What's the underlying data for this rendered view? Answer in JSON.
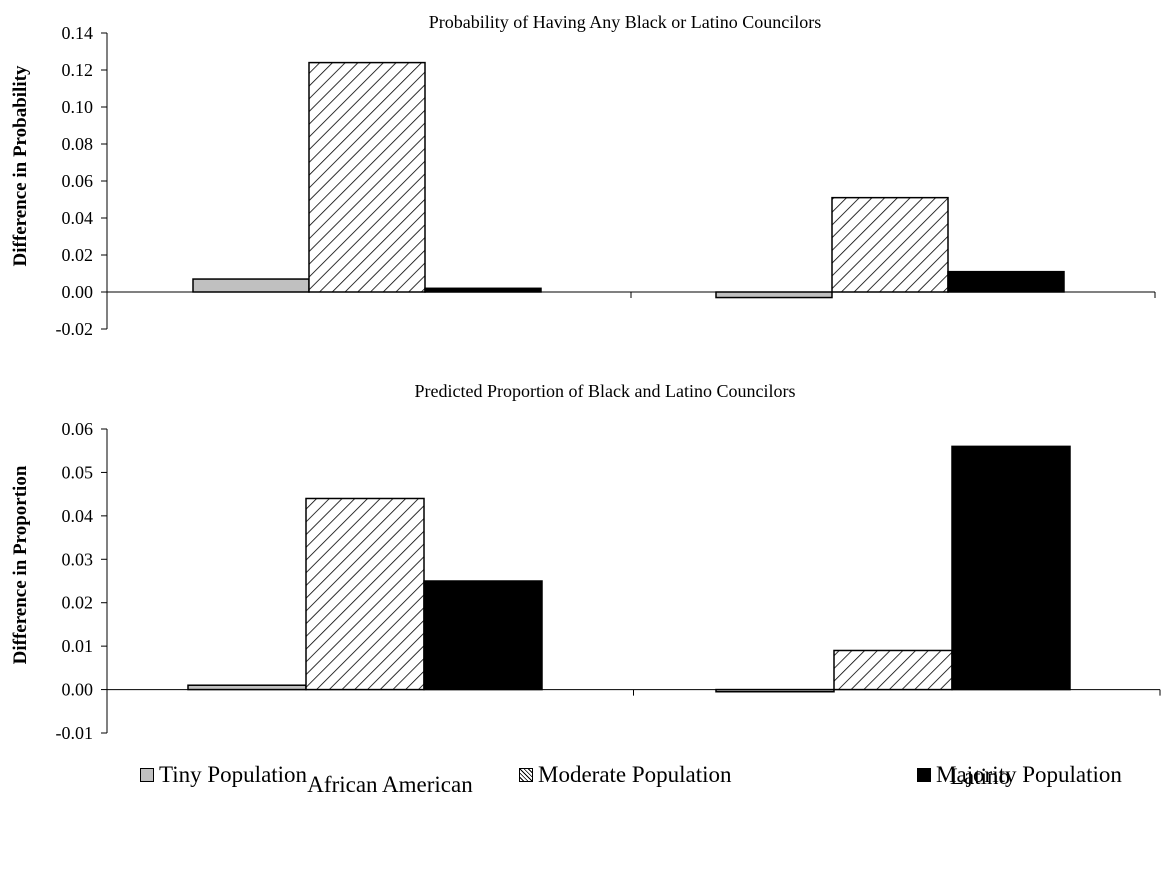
{
  "chart_data": [
    {
      "type": "bar",
      "title": "Probability of Having Any Black or Latino Councilors",
      "ylabel": "Difference in Probability",
      "categories": [
        "African American",
        "Latino"
      ],
      "ylim": [
        -0.02,
        0.14
      ],
      "yticks": [
        "-0.02",
        "0.00",
        "0.02",
        "0.04",
        "0.06",
        "0.08",
        "0.10",
        "0.12",
        "0.14"
      ],
      "series": [
        {
          "name": "Tiny Population",
          "values": [
            0.007,
            -0.003
          ]
        },
        {
          "name": "Moderate Population",
          "values": [
            0.124,
            0.051
          ]
        },
        {
          "name": "Majority Population",
          "values": [
            0.002,
            0.011
          ]
        }
      ]
    },
    {
      "type": "bar",
      "title": "Predicted Proportion of Black and Latino Councilors",
      "ylabel": "Difference in Proportion",
      "categories": [
        "African American",
        "Latino"
      ],
      "ylim": [
        -0.01,
        0.06
      ],
      "yticks": [
        "-0.01",
        "0.00",
        "0.01",
        "0.02",
        "0.03",
        "0.04",
        "0.05",
        "0.06"
      ],
      "series": [
        {
          "name": "Tiny Population",
          "values": [
            0.001,
            -0.0005
          ]
        },
        {
          "name": "Moderate Population",
          "values": [
            0.044,
            0.009
          ]
        },
        {
          "name": "Majority Population",
          "values": [
            0.025,
            0.056
          ]
        }
      ]
    }
  ],
  "x_category_labels": [
    "African American",
    "Latino"
  ],
  "legend": {
    "tiny": "Tiny Population",
    "moderate": "Moderate Population",
    "majority": "Majority Population"
  },
  "colors": {
    "tiny": "#c0c0c0",
    "moderate": "hatched",
    "majority": "#000000"
  }
}
